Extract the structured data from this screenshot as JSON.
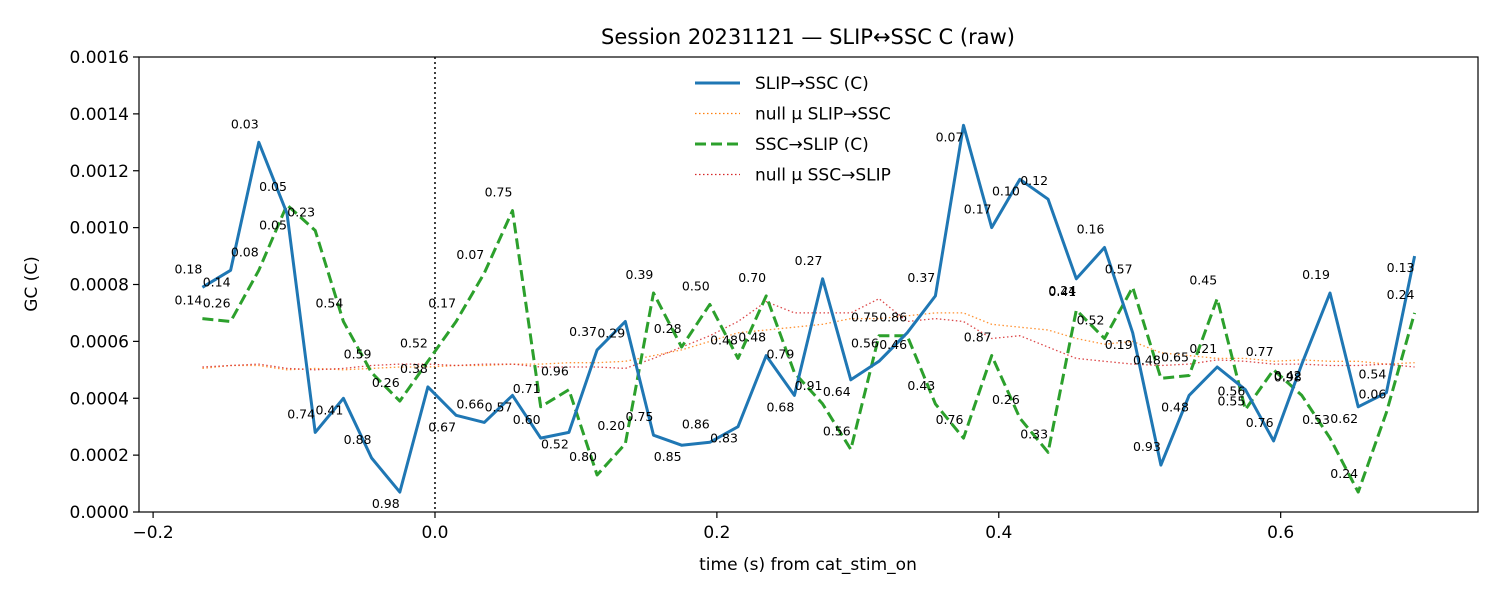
{
  "chart_data": {
    "type": "line",
    "title": "Session 20231121 — SLIP↔SSC C (raw)",
    "xlabel": "time (s) from cat_stim_on",
    "ylabel": "GC (C)",
    "xlim": [
      -0.21,
      0.74
    ],
    "ylim": [
      0,
      0.0016
    ],
    "xticks": [
      -0.2,
      0.0,
      0.2,
      0.4,
      0.6
    ],
    "xtick_labels": [
      "−0.2",
      "0.0",
      "0.2",
      "0.4",
      "0.6"
    ],
    "yticks": [
      0,
      0.0002,
      0.0004,
      0.0006,
      0.0008,
      0.001,
      0.0012,
      0.0014,
      0.0016
    ],
    "ytick_labels": [
      "0.0000",
      "0.0002",
      "0.0004",
      "0.0006",
      "0.0008",
      "0.0010",
      "0.0012",
      "0.0014",
      "0.0016"
    ],
    "vline": {
      "x": 0.0,
      "style": "dotted"
    },
    "grid": false,
    "legend_position": "top-center",
    "x": [
      -0.165,
      -0.145,
      -0.125,
      -0.105,
      -0.085,
      -0.065,
      -0.045,
      -0.025,
      -0.005,
      0.015,
      0.035,
      0.055,
      0.075,
      0.095,
      0.115,
      0.135,
      0.155,
      0.175,
      0.195,
      0.215,
      0.235,
      0.255,
      0.275,
      0.295,
      0.315,
      0.335,
      0.355,
      0.375,
      0.395,
      0.415,
      0.435,
      0.455,
      0.475,
      0.495,
      0.515,
      0.535,
      0.555,
      0.575,
      0.595,
      0.615,
      0.635,
      0.655,
      0.675,
      0.695
    ],
    "series": [
      {
        "name": "SLIP→SSC (C)",
        "color": "#1f77b4",
        "style": "solid",
        "values": [
          0.00079,
          0.00085,
          0.0013,
          0.00105,
          0.00028,
          0.0004,
          0.00019,
          7e-05,
          0.00044,
          0.00034,
          0.000315,
          0.00041,
          0.00026,
          0.00028,
          0.00057,
          0.00067,
          0.00027,
          0.000235,
          0.000245,
          0.0003,
          0.00055,
          0.00041,
          0.00082,
          0.000465,
          0.00053,
          0.00063,
          0.00076,
          0.00136,
          0.001,
          0.00117,
          0.0011,
          0.00082,
          0.00093,
          0.00063,
          0.000165,
          0.00041,
          0.00051,
          0.00043,
          0.00025,
          0.00052,
          0.00077,
          0.00037,
          0.00042,
          0.0009
        ],
        "pvalues": [
          "0.18",
          "0.14",
          "0.03",
          "0.05",
          "0.74",
          "0.41",
          "0.88",
          "0.98",
          "0.38",
          "0.67",
          "0.66",
          "0.57",
          "0.60",
          "0.52",
          "0.37",
          "0.29",
          "0.75",
          "0.85",
          "0.86",
          "0.83",
          "0.48",
          "0.68",
          "0.27",
          "0.64",
          "0.56",
          "0.46",
          "0.37",
          "0.07",
          "0.17",
          "0.10",
          "0.12",
          "0.24",
          "0.16",
          "0.19",
          "0.93",
          "0.48",
          "0.21",
          "0.55",
          "0.76",
          "0.42",
          "0.19",
          "0.62",
          "0.54",
          "0.13"
        ]
      },
      {
        "name": "null μ SLIP→SSC",
        "color": "#ff7f0e",
        "style": "dotted",
        "values": [
          0.000505,
          0.000515,
          0.000515,
          0.0005,
          0.000505,
          0.0005,
          0.000505,
          0.00051,
          0.00051,
          0.000515,
          0.000515,
          0.00052,
          0.00052,
          0.000525,
          0.000525,
          0.00053,
          0.00055,
          0.00057,
          0.0006,
          0.00063,
          0.00064,
          0.00065,
          0.00066,
          0.00068,
          0.00068,
          0.00069,
          0.0007,
          0.0007,
          0.00066,
          0.00065,
          0.00064,
          0.00061,
          0.00059,
          0.0006,
          0.00056,
          0.00055,
          0.00054,
          0.00054,
          0.00053,
          0.000535,
          0.00053,
          0.00053,
          0.00052,
          0.000525
        ]
      },
      {
        "name": "SSC→SLIP (C)",
        "color": "#2ca02c",
        "style": "dashed",
        "values": [
          0.00068,
          0.00067,
          0.00085,
          0.00108,
          0.00099,
          0.00067,
          0.00049,
          0.00039,
          0.00053,
          0.00067,
          0.00084,
          0.00106,
          0.00037,
          0.00043,
          0.00013,
          0.00024,
          0.00077,
          0.00058,
          0.00073,
          0.00054,
          0.00076,
          0.00049,
          0.00038,
          0.00022,
          0.00062,
          0.00062,
          0.00038,
          0.00026,
          0.00055,
          0.00033,
          0.00021,
          0.00071,
          0.00061,
          0.00079,
          0.00047,
          0.00048,
          0.00075,
          0.00036,
          0.0005,
          0.00041,
          0.00026,
          7e-05,
          0.00035,
          0.0007
        ],
        "pvalues": [
          "0.14",
          "0.26",
          "0.08",
          "0.05",
          "0.23",
          "0.54",
          "0.59",
          "0.26",
          "0.52",
          "0.17",
          "0.07",
          "0.75",
          "0.71",
          "0.96",
          "0.80",
          "0.20",
          "0.39",
          "0.28",
          "0.50",
          "0.48",
          "0.70",
          "0.79",
          "0.91",
          "0.56",
          "0.75",
          "0.86",
          "0.43",
          "0.76",
          "0.87",
          "0.26",
          "0.33",
          "0.41",
          "0.52",
          "0.57",
          "0.48",
          "0.65",
          "0.45",
          "0.56",
          "0.77",
          "0.98",
          "0.53",
          "0.24",
          "0.06",
          "0.24"
        ]
      },
      {
        "name": "null μ SSC→SLIP",
        "color": "#d62728",
        "style": "dotted",
        "values": [
          0.00051,
          0.000515,
          0.00052,
          0.000505,
          0.0005,
          0.000505,
          0.000515,
          0.00052,
          0.00052,
          0.000515,
          0.00052,
          0.00052,
          0.00051,
          0.00051,
          0.00051,
          0.000505,
          0.00054,
          0.00058,
          0.00062,
          0.00067,
          0.00074,
          0.0007,
          0.0007,
          0.0007,
          0.00075,
          0.00067,
          0.00068,
          0.00067,
          0.00061,
          0.00062,
          0.00058,
          0.00054,
          0.00053,
          0.00052,
          0.000515,
          0.00052,
          0.000535,
          0.00053,
          0.00052,
          0.00052,
          0.000515,
          0.000515,
          0.00052,
          0.00051
        ]
      }
    ]
  }
}
